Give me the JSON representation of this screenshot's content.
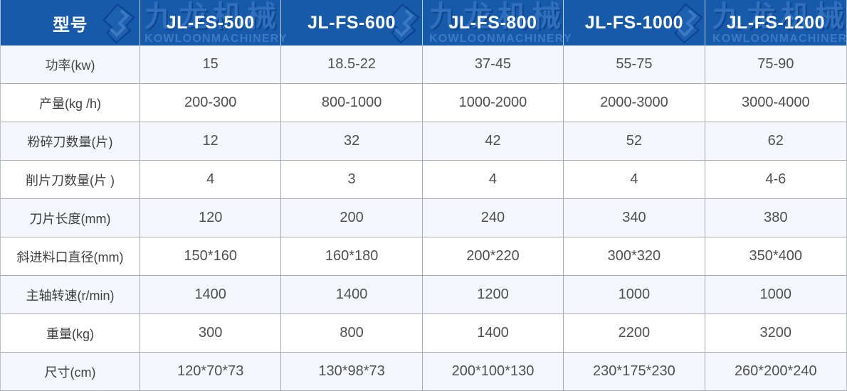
{
  "chart_data": {
    "type": "table",
    "header": [
      "型号",
      "JL-FS-500",
      "JL-FS-600",
      "JL-FS-800",
      "JL-FS-1000",
      "JL-FS-1200"
    ],
    "rows": [
      {
        "label": "功率(kw)",
        "values": [
          "15",
          "18.5-22",
          "37-45",
          "55-75",
          "75-90"
        ]
      },
      {
        "label": "产量(kg /h)",
        "values": [
          "200-300",
          "800-1000",
          "1000-2000",
          "2000-3000",
          "3000-4000"
        ]
      },
      {
        "label": "粉碎刀数量(片)",
        "values": [
          "12",
          "32",
          "42",
          "52",
          "62"
        ]
      },
      {
        "label": "削片刀数量(片 )",
        "values": [
          "4",
          "3",
          "4",
          "4",
          "4-6"
        ]
      },
      {
        "label": "刀片长度(mm)",
        "values": [
          "120",
          "200",
          "240",
          "340",
          "380"
        ]
      },
      {
        "label": "斜进料口直径(mm)",
        "values": [
          "150*160",
          "160*180",
          "200*220",
          "300*320",
          "350*400"
        ]
      },
      {
        "label": "主轴转速(r/min)",
        "values": [
          "1400",
          "1400",
          "1200",
          "1000",
          "1000"
        ]
      },
      {
        "label": "重量(kg)",
        "values": [
          "300",
          "800",
          "1400",
          "2200",
          "3200"
        ]
      },
      {
        "label": "尺寸(cm)",
        "values": [
          "120*70*73",
          "130*98*73",
          "200*100*130",
          "230*175*230",
          "260*200*240"
        ]
      }
    ]
  },
  "watermark": {
    "logo_icon": "jl-monogram-icon",
    "brand_cn": "九龙机械",
    "brand_en": "KOWLOONMACHINERY"
  },
  "colors": {
    "header_bg": "#165aa9",
    "header_text": "#ffffff",
    "row_tint_bg": "#f4f8fd",
    "row_white_bg": "#ffffff",
    "grid_border": "#a6abb0",
    "cell_text": "#4f4f4f",
    "watermark_blue": "#2f6fbd",
    "watermark_dark_blue": "#0a387d",
    "watermark_en_blue": "#3b7ac4"
  }
}
